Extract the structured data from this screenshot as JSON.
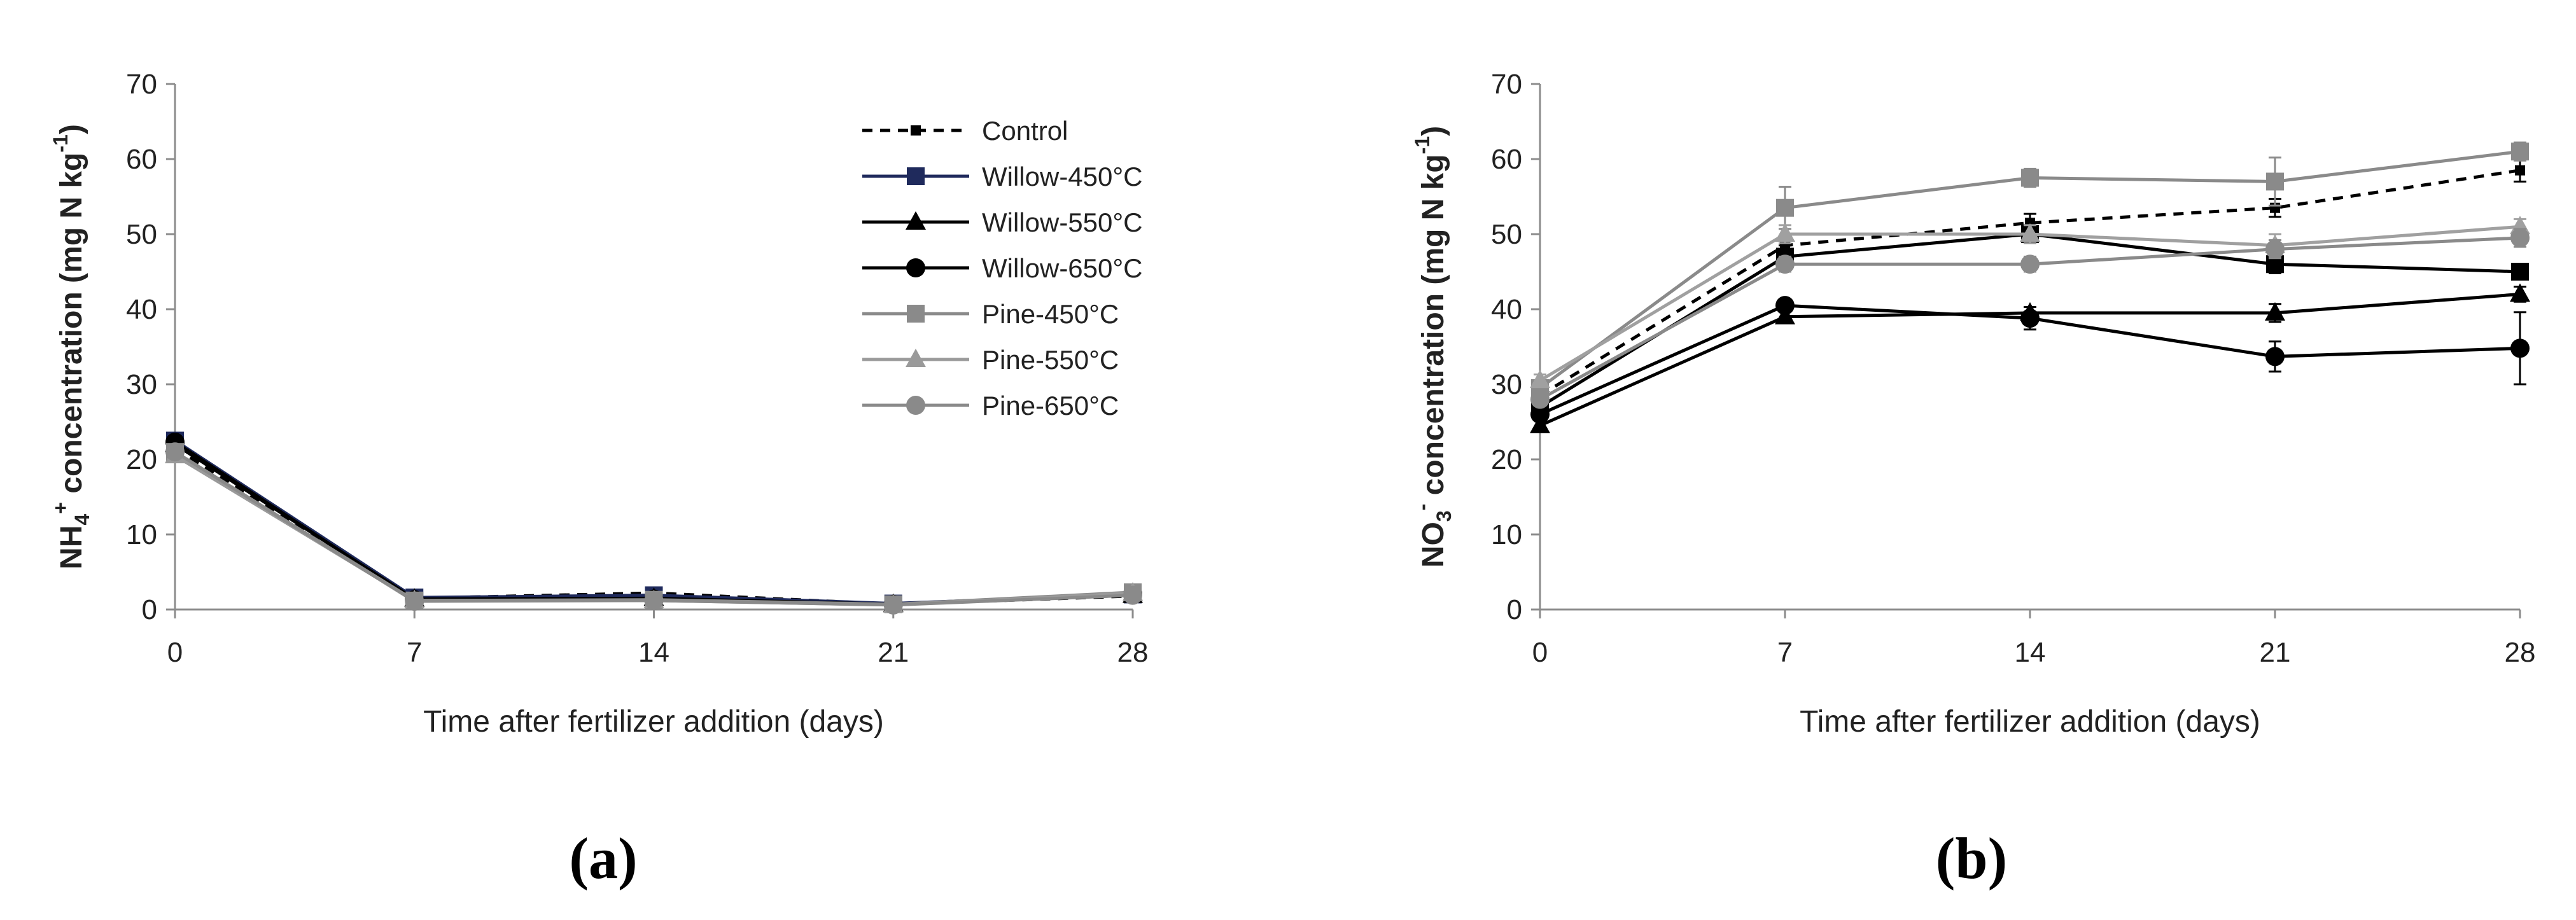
{
  "chart_data": [
    {
      "type": "line",
      "panel_label": "(a)",
      "xlabel": "Time after fertilizer addition (days)",
      "ylabel_parts": [
        "NH",
        "4",
        "+",
        " concentration (mg N kg",
        "-1",
        ")"
      ],
      "x": [
        0,
        7,
        14,
        21,
        28
      ],
      "xticks": [
        "0",
        "7",
        "14",
        "21",
        "28"
      ],
      "yticks": [
        "0",
        "10",
        "20",
        "30",
        "40",
        "50",
        "60",
        "70"
      ],
      "xlim": [
        0,
        28
      ],
      "ylim": [
        0,
        70
      ],
      "legend_position": "top-right",
      "series": [
        {
          "name": "Control",
          "color": "#000000",
          "dash": true,
          "marker": "square-small",
          "values": [
            21.5,
            1.5,
            2.2,
            0.7,
            1.8
          ],
          "err": [
            0.4,
            0.3,
            0.3,
            0.2,
            0.3
          ]
        },
        {
          "name": "Willow-450°C",
          "color": "#1f2a5c",
          "dash": false,
          "marker": "square",
          "values": [
            22.5,
            1.6,
            1.9,
            0.8,
            2.0
          ],
          "err": [
            0.5,
            0.3,
            0.3,
            0.2,
            0.3
          ]
        },
        {
          "name": "Willow-550°C",
          "color": "#000000",
          "dash": false,
          "marker": "triangle",
          "values": [
            22.0,
            1.4,
            1.5,
            0.7,
            1.9
          ],
          "err": [
            0.5,
            0.3,
            0.3,
            0.2,
            0.3
          ]
        },
        {
          "name": "Willow-650°C",
          "color": "#000000",
          "dash": false,
          "marker": "circle",
          "values": [
            22.3,
            1.3,
            1.4,
            0.7,
            2.1
          ],
          "err": [
            0.5,
            0.3,
            0.3,
            0.2,
            0.3
          ]
        },
        {
          "name": "Pine-450°C",
          "color": "#8a8a8a",
          "dash": false,
          "marker": "square",
          "values": [
            21.0,
            1.2,
            1.3,
            0.7,
            2.3
          ],
          "err": [
            0.5,
            0.3,
            0.3,
            0.2,
            0.3
          ]
        },
        {
          "name": "Pine-550°C",
          "color": "#9a9a9a",
          "dash": false,
          "marker": "triangle",
          "values": [
            20.5,
            1.2,
            1.2,
            0.6,
            2.2
          ],
          "err": [
            0.5,
            0.3,
            0.3,
            0.2,
            0.3
          ]
        },
        {
          "name": "Pine-650°C",
          "color": "#8a8a8a",
          "dash": false,
          "marker": "circle",
          "values": [
            21.0,
            1.1,
            1.2,
            0.6,
            1.9
          ],
          "err": [
            0.5,
            0.3,
            0.3,
            0.2,
            0.3
          ]
        }
      ]
    },
    {
      "type": "line",
      "panel_label": "(b)",
      "xlabel": "Time after fertilizer addition (days)",
      "ylabel_parts": [
        "NO",
        "3",
        "-",
        " concentration (mg N kg",
        "-1",
        ")"
      ],
      "x": [
        0,
        7,
        14,
        21,
        28
      ],
      "xticks": [
        "0",
        "7",
        "14",
        "21",
        "28"
      ],
      "yticks": [
        "0",
        "10",
        "20",
        "30",
        "40",
        "50",
        "60",
        "70"
      ],
      "xlim": [
        0,
        28
      ],
      "ylim": [
        0,
        70
      ],
      "legend_position": "none",
      "series": [
        {
          "name": "Control",
          "color": "#000000",
          "dash": true,
          "marker": "square-small",
          "values": [
            28.5,
            48.5,
            51.5,
            53.5,
            58.5
          ],
          "err": [
            1.0,
            1.0,
            1.2,
            1.2,
            1.5
          ]
        },
        {
          "name": "Willow-450°C",
          "color": "#000000",
          "dash": false,
          "marker": "square",
          "values": [
            27.0,
            47.0,
            50.0,
            46.0,
            45.0
          ],
          "err": [
            1.0,
            1.5,
            1.2,
            1.2,
            1.0
          ]
        },
        {
          "name": "Willow-550°C",
          "color": "#000000",
          "dash": false,
          "marker": "triangle",
          "values": [
            24.5,
            39.0,
            39.5,
            39.5,
            42.0
          ],
          "err": [
            0.8,
            0.8,
            0.8,
            1.2,
            1.0
          ]
        },
        {
          "name": "Willow-650°C",
          "color": "#000000",
          "dash": false,
          "marker": "circle",
          "values": [
            26.0,
            40.5,
            38.8,
            33.7,
            34.8
          ],
          "err": [
            0.8,
            0.8,
            1.5,
            2.0,
            4.8
          ]
        },
        {
          "name": "Pine-450°C",
          "color": "#8a8a8a",
          "dash": false,
          "marker": "square",
          "values": [
            29.5,
            53.5,
            57.5,
            57.0,
            61.0
          ],
          "err": [
            1.0,
            2.8,
            1.2,
            3.2,
            1.2
          ]
        },
        {
          "name": "Pine-550°C",
          "color": "#a0a0a0",
          "dash": false,
          "marker": "triangle",
          "values": [
            30.5,
            50.0,
            50.0,
            48.5,
            51.0
          ],
          "err": [
            0.8,
            1.2,
            1.2,
            1.5,
            1.0
          ]
        },
        {
          "name": "Pine-650°C",
          "color": "#8a8a8a",
          "dash": false,
          "marker": "circle",
          "values": [
            28.0,
            46.0,
            46.0,
            48.0,
            49.5
          ],
          "err": [
            0.8,
            1.0,
            1.0,
            1.2,
            1.2
          ]
        }
      ]
    }
  ]
}
